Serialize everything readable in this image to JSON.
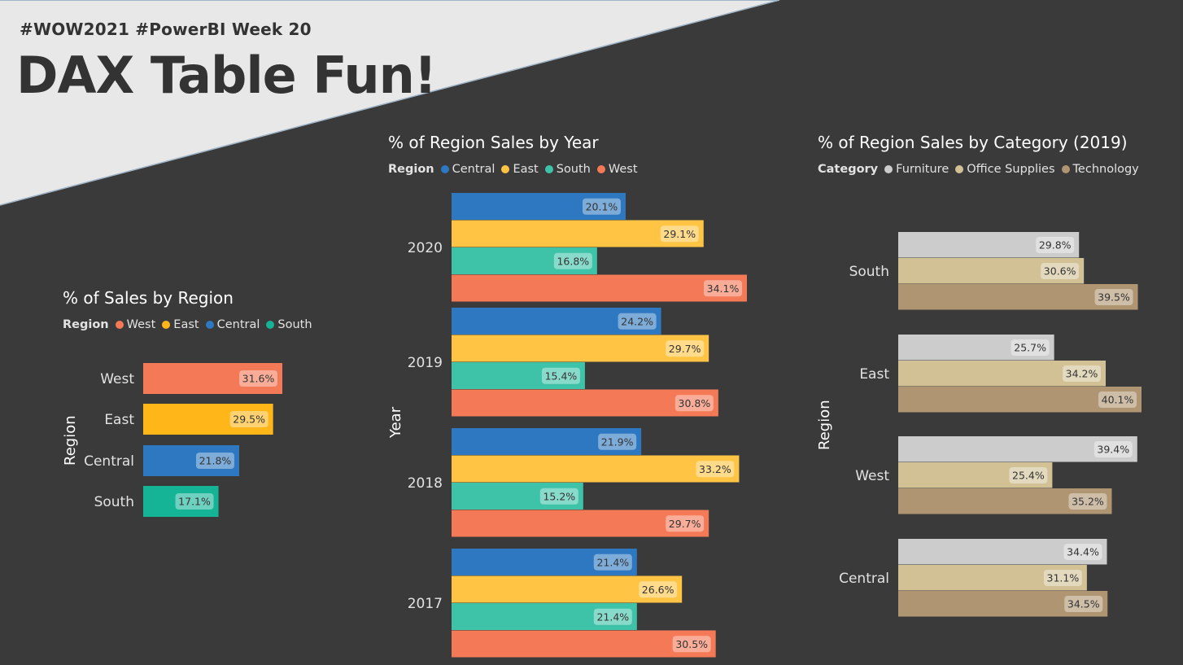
{
  "header": {
    "tag": "#WOW2021 #PowerBI Week 20",
    "title": "DAX Table Fun!"
  },
  "colors": {
    "background": "#3a3a3a",
    "banner": "#e8e8e8",
    "West": "#f47a57",
    "East": "#ffc444",
    "Central": "#2e78c2",
    "South": "#3ec3a9",
    "SouthTotal": "#15b497",
    "EastTotal": "#ffb619",
    "Furniture": "#cccccc",
    "Office Supplies": "#d2c195",
    "Technology": "#b09572"
  },
  "chart_data": [
    {
      "type": "bar",
      "orientation": "horizontal",
      "title": "% of Sales by Region",
      "legend_title": "Region",
      "legend": [
        "West",
        "East",
        "Central",
        "South"
      ],
      "ylabel": "Region",
      "categories": [
        "West",
        "East",
        "Central",
        "South"
      ],
      "values": [
        31.6,
        29.5,
        21.8,
        17.1
      ],
      "labels": [
        "31.6%",
        "29.5%",
        "21.8%",
        "17.1%"
      ]
    },
    {
      "type": "bar",
      "orientation": "horizontal",
      "title": "% of Region Sales by Year",
      "legend_title": "Region",
      "legend": [
        "Central",
        "East",
        "South",
        "West"
      ],
      "ylabel": "Year",
      "categories": [
        "2020",
        "2019",
        "2018",
        "2017"
      ],
      "series": [
        {
          "name": "Central",
          "values": [
            20.1,
            24.2,
            21.9,
            21.4
          ],
          "labels": [
            "20.1%",
            "24.2%",
            "21.9%",
            "21.4%"
          ]
        },
        {
          "name": "East",
          "values": [
            29.1,
            29.7,
            33.2,
            26.6
          ],
          "labels": [
            "29.1%",
            "29.7%",
            "33.2%",
            "26.6%"
          ]
        },
        {
          "name": "South",
          "values": [
            16.8,
            15.4,
            15.2,
            21.4
          ],
          "labels": [
            "16.8%",
            "15.4%",
            "15.2%",
            "21.4%"
          ]
        },
        {
          "name": "West",
          "values": [
            34.1,
            30.8,
            29.7,
            30.5
          ],
          "labels": [
            "34.1%",
            "30.8%",
            "29.7%",
            "30.5%"
          ]
        }
      ]
    },
    {
      "type": "bar",
      "orientation": "horizontal",
      "title": "% of Region Sales by Category (2019)",
      "legend_title": "Category",
      "legend": [
        "Furniture",
        "Office Supplies",
        "Technology"
      ],
      "ylabel": "Region",
      "categories": [
        "South",
        "East",
        "West",
        "Central"
      ],
      "series": [
        {
          "name": "Furniture",
          "values": [
            29.8,
            25.7,
            39.4,
            34.4
          ],
          "labels": [
            "29.8%",
            "25.7%",
            "39.4%",
            "34.4%"
          ]
        },
        {
          "name": "Office Supplies",
          "values": [
            30.6,
            34.2,
            25.4,
            31.1
          ],
          "labels": [
            "30.6%",
            "34.2%",
            "25.4%",
            "31.1%"
          ]
        },
        {
          "name": "Technology",
          "values": [
            39.5,
            40.1,
            35.2,
            34.5
          ],
          "labels": [
            "39.5%",
            "40.1%",
            "35.2%",
            "34.5%"
          ]
        }
      ]
    }
  ]
}
